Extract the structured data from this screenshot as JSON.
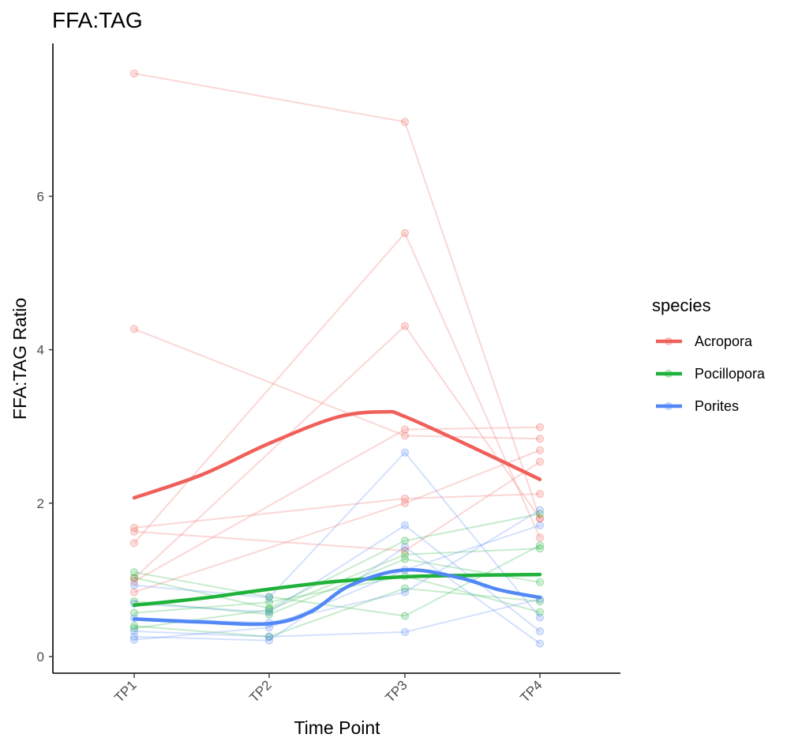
{
  "chart_data": {
    "type": "line",
    "title": "FFA:TAG",
    "xlabel": "Time Point",
    "ylabel": "FFA:TAG Ratio",
    "categories": [
      "TP1",
      "TP2",
      "TP3",
      "TP4"
    ],
    "ylim": [
      -0.2,
      8.0
    ],
    "yticks": [
      0,
      2,
      4,
      6
    ],
    "grid": false,
    "legend": {
      "title": "species",
      "placement": "right",
      "entries": [
        {
          "name": "Acropora",
          "color": "#f0605a"
        },
        {
          "name": "Pocillopora",
          "color": "#1fb23a"
        },
        {
          "name": "Porites",
          "color": "#5288f6"
        }
      ]
    },
    "individual_lines": [
      {
        "species": "Acropora",
        "values": [
          7.6,
          null,
          6.97,
          1.8
        ]
      },
      {
        "species": "Acropora",
        "values": [
          4.27,
          null,
          2.88,
          2.84
        ]
      },
      {
        "species": "Acropora",
        "values": [
          1.68,
          null,
          2.06,
          2.12
        ]
      },
      {
        "species": "Acropora",
        "values": [
          1.63,
          null,
          1.38,
          2.54
        ]
      },
      {
        "species": "Acropora",
        "values": [
          1.48,
          null,
          5.52,
          1.55
        ]
      },
      {
        "species": "Acropora",
        "values": [
          1.02,
          null,
          4.31,
          1.8
        ]
      },
      {
        "species": "Acropora",
        "values": [
          0.98,
          null,
          2.96,
          2.99
        ]
      },
      {
        "species": "Acropora",
        "values": [
          0.84,
          null,
          2.0,
          2.69
        ]
      },
      {
        "species": "Pocillopora",
        "values": [
          1.1,
          0.78,
          0.53,
          1.45
        ]
      },
      {
        "species": "Pocillopora",
        "values": [
          1.03,
          0.63,
          1.51,
          1.86
        ]
      },
      {
        "species": "Pocillopora",
        "values": [
          0.72,
          0.55,
          1.27,
          0.97
        ]
      },
      {
        "species": "Pocillopora",
        "values": [
          0.57,
          0.71,
          1.05,
          0.58
        ]
      },
      {
        "species": "Pocillopora",
        "values": [
          0.4,
          0.26,
          0.89,
          0.72
        ]
      },
      {
        "species": "Pocillopora",
        "values": [
          0.37,
          0.61,
          1.33,
          1.41
        ]
      },
      {
        "species": "Porites",
        "values": [
          0.93,
          0.77,
          2.66,
          0.51
        ]
      },
      {
        "species": "Porites",
        "values": [
          0.69,
          0.58,
          1.71,
          0.33
        ]
      },
      {
        "species": "Porites",
        "values": [
          0.5,
          0.44,
          0.84,
          1.91
        ]
      },
      {
        "species": "Porites",
        "values": [
          0.33,
          0.26,
          0.32,
          0.75
        ]
      },
      {
        "species": "Porites",
        "values": [
          0.26,
          0.21,
          1.43,
          0.17
        ]
      },
      {
        "species": "Porites",
        "values": [
          0.22,
          0.38,
          1.13,
          1.71
        ]
      }
    ],
    "series": [
      {
        "name": "Acropora",
        "x": [
          1,
          1.5,
          2,
          2.5,
          2.85,
          3,
          3.5,
          4
        ],
        "values": [
          2.07,
          2.37,
          2.78,
          3.12,
          3.19,
          3.13,
          2.73,
          2.31
        ]
      },
      {
        "name": "Pocillopora",
        "x": [
          1,
          1.5,
          2,
          2.5,
          3,
          3.5,
          4
        ],
        "values": [
          0.67,
          0.76,
          0.88,
          0.98,
          1.04,
          1.06,
          1.07
        ]
      },
      {
        "name": "Porites",
        "x": [
          1,
          1.5,
          2,
          2.3,
          2.6,
          3,
          3.4,
          3.7,
          4
        ],
        "values": [
          0.49,
          0.45,
          0.43,
          0.58,
          0.93,
          1.13,
          1.03,
          0.87,
          0.77
        ]
      }
    ]
  }
}
